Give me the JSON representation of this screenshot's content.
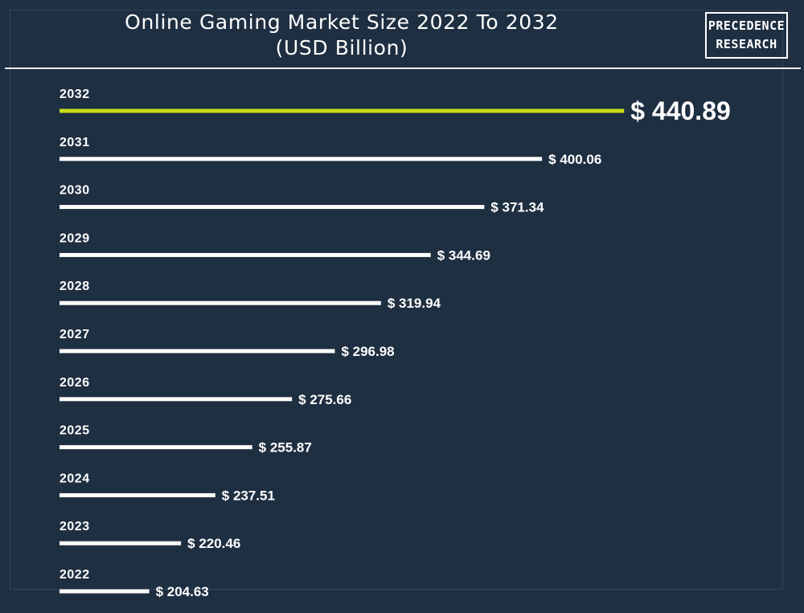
{
  "header": {
    "title_line1": "Online Gaming Market Size 2022 To 2032",
    "title_line2": "(USD Billion)"
  },
  "logo": {
    "line1": "PRECEDENCE",
    "line2": "RESEARCH"
  },
  "colors": {
    "background": "#1f2f42",
    "bar": "#ffffff",
    "highlight_bar": "#c8dc1e",
    "text": "#ffffff"
  },
  "chart_data": {
    "type": "bar",
    "orientation": "horizontal",
    "title": "Online Gaming Market Size 2022 To 2032",
    "subtitle": "(USD Billion)",
    "categories": [
      "2032",
      "2031",
      "2030",
      "2029",
      "2028",
      "2027",
      "2026",
      "2025",
      "2024",
      "2023",
      "2022"
    ],
    "values": [
      440.89,
      400.06,
      371.34,
      344.69,
      319.94,
      296.98,
      275.66,
      255.87,
      237.51,
      220.46,
      204.63
    ],
    "value_labels": [
      "$ 440.89",
      "$ 400.06",
      "$ 371.34",
      "$ 344.69",
      "$ 319.94",
      "$ 296.98",
      "$ 275.66",
      "$ 255.87",
      "$ 237.51",
      "$ 220.46",
      "$ 204.63"
    ],
    "highlight_index": 0,
    "grid": false,
    "legend": "none"
  }
}
